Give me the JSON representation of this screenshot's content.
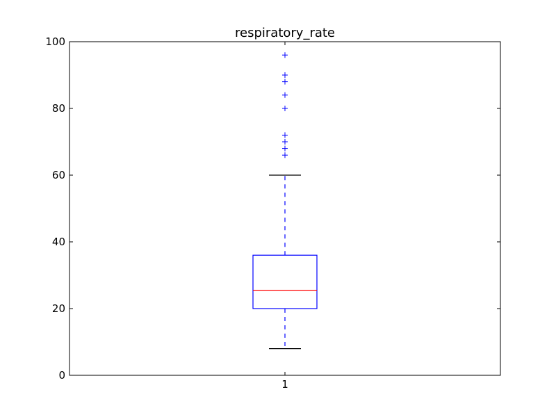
{
  "chart_data": {
    "type": "box",
    "title": "respiratory_rate",
    "xlabel": "",
    "ylabel": "",
    "categories": [
      "1"
    ],
    "ylim": [
      0,
      100
    ],
    "yticks": [
      0,
      20,
      40,
      60,
      80,
      100
    ],
    "grid": false,
    "boxes": [
      {
        "category": "1",
        "whisker_low": 8,
        "q1": 20,
        "median": 25.5,
        "q3": 36,
        "whisker_high": 60,
        "outliers": [
          66,
          68,
          70,
          72,
          80,
          84,
          88,
          90,
          96
        ]
      }
    ],
    "colors": {
      "box": "#0000ff",
      "median": "#ff0000",
      "whisker": "#0000ff",
      "cap": "#000000",
      "flier": "#0000ff",
      "axes": "#000000"
    }
  }
}
